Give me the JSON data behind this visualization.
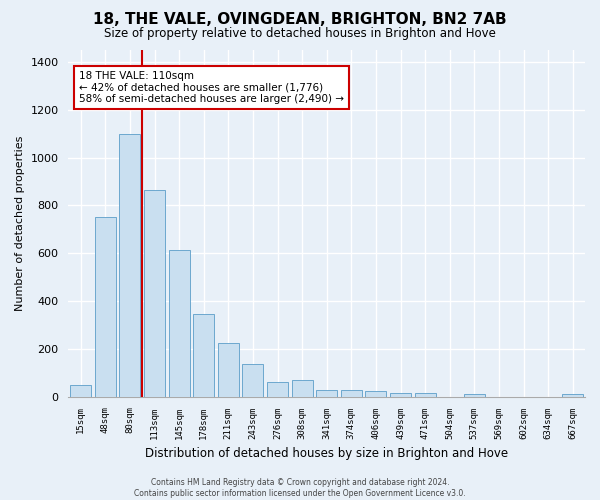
{
  "title": "18, THE VALE, OVINGDEAN, BRIGHTON, BN2 7AB",
  "subtitle": "Size of property relative to detached houses in Brighton and Hove",
  "xlabel": "Distribution of detached houses by size in Brighton and Hove",
  "ylabel": "Number of detached properties",
  "bar_labels": [
    "15sqm",
    "48sqm",
    "80sqm",
    "113sqm",
    "145sqm",
    "178sqm",
    "211sqm",
    "243sqm",
    "276sqm",
    "308sqm",
    "341sqm",
    "374sqm",
    "406sqm",
    "439sqm",
    "471sqm",
    "504sqm",
    "537sqm",
    "569sqm",
    "602sqm",
    "634sqm",
    "667sqm"
  ],
  "bar_values": [
    50,
    750,
    1100,
    865,
    615,
    345,
    225,
    135,
    60,
    70,
    30,
    30,
    22,
    15,
    15,
    0,
    12,
    0,
    0,
    0,
    12
  ],
  "bar_color": "#c9dff0",
  "bar_edge_color": "#5b9dc9",
  "vline_color": "#cc0000",
  "annotation_text": "18 THE VALE: 110sqm\n← 42% of detached houses are smaller (1,776)\n58% of semi-detached houses are larger (2,490) →",
  "annotation_box_color": "#ffffff",
  "annotation_box_edge": "#cc0000",
  "ylim": [
    0,
    1450
  ],
  "yticks": [
    0,
    200,
    400,
    600,
    800,
    1000,
    1200,
    1400
  ],
  "background_color": "#e8f0f8",
  "grid_color": "#ffffff",
  "footer1": "Contains HM Land Registry data © Crown copyright and database right 2024.",
  "footer2": "Contains public sector information licensed under the Open Government Licence v3.0."
}
